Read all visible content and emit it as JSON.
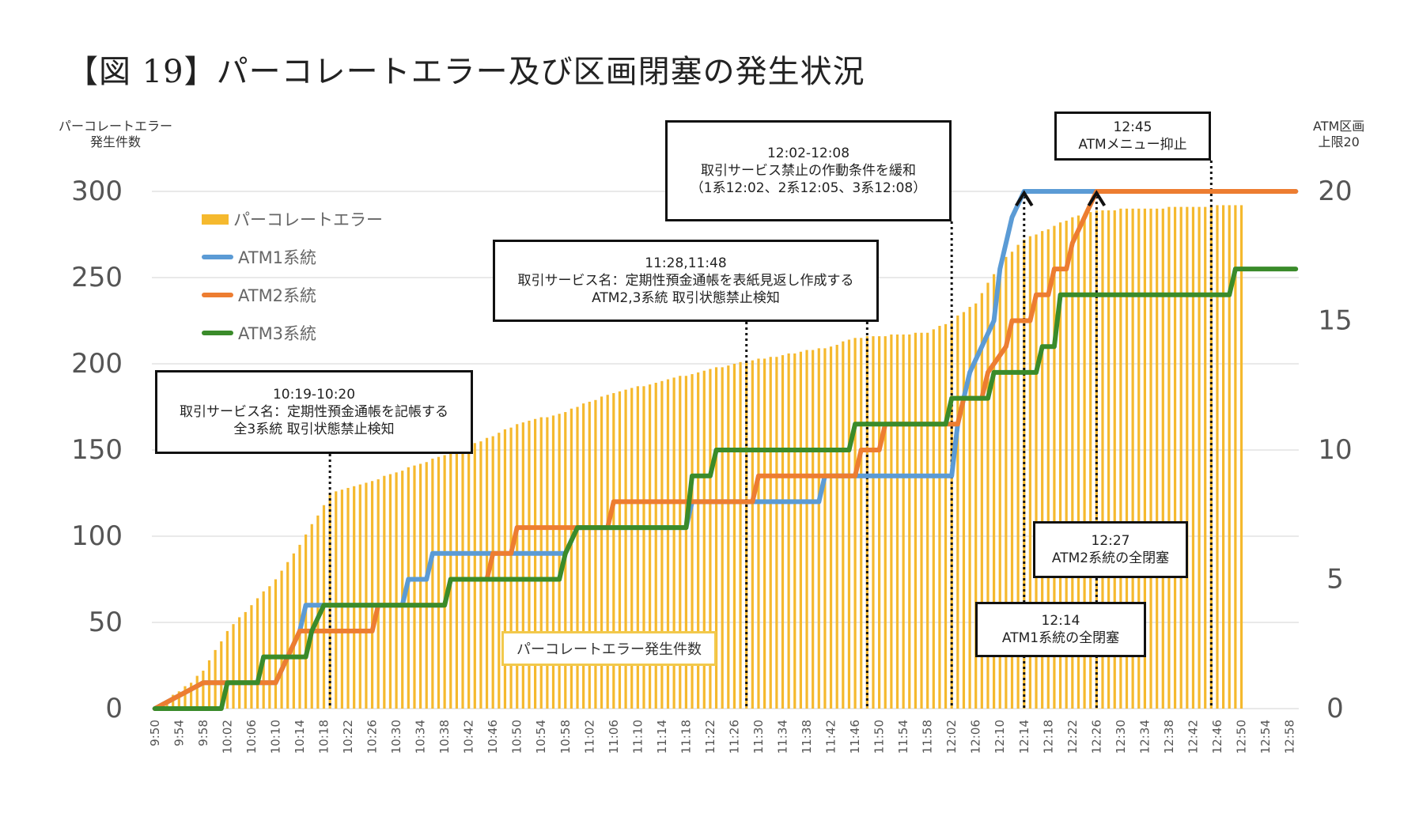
{
  "title": "【図 19】パーコレートエラー及び区画閉塞の発生状況",
  "chart_data": {
    "type": "bar+line",
    "y_left_title": [
      "パーコレートエラー",
      "発生件数"
    ],
    "y_right_title": [
      "ATM区画",
      "上限20"
    ],
    "y_left_ticks": [
      "300",
      "250",
      "200",
      "150",
      "100",
      "50",
      "0"
    ],
    "y_right_ticks": [
      "20",
      "15",
      "10",
      "5",
      "0"
    ],
    "ylim_left": [
      0,
      300
    ],
    "ylim_right": [
      0,
      20
    ],
    "x_start": "9:50",
    "x_end": "12:59",
    "x_tick_labels": [
      "9:50",
      "9:54",
      "9:58",
      "10:02",
      "10:06",
      "10:10",
      "10:14",
      "10:18",
      "10:22",
      "10:26",
      "10:30",
      "10:34",
      "10:38",
      "10:42",
      "10:46",
      "10:50",
      "10:54",
      "10:58",
      "11:02",
      "11:06",
      "11:10",
      "11:14",
      "11:18",
      "11:22",
      "11:26",
      "11:30",
      "11:34",
      "11:38",
      "11:42",
      "11:46",
      "11:50",
      "11:54",
      "11:58",
      "12:02",
      "12:06",
      "12:10",
      "12:14",
      "12:18",
      "12:22",
      "12:26",
      "12:30",
      "12:34",
      "12:38",
      "12:42",
      "12:46",
      "12:50",
      "12:54",
      "12:58"
    ],
    "bar_series": {
      "name": "パーコレートエラー",
      "color": "#f5b92e",
      "cumulative_points": [
        [
          "9:50",
          0
        ],
        [
          "9:52",
          5
        ],
        [
          "9:56",
          15
        ],
        [
          "9:58",
          22
        ],
        [
          "10:02",
          45
        ],
        [
          "10:06",
          60
        ],
        [
          "10:10",
          75
        ],
        [
          "10:14",
          95
        ],
        [
          "10:18",
          118
        ],
        [
          "10:19",
          125
        ],
        [
          "10:26",
          132
        ],
        [
          "10:34",
          142
        ],
        [
          "10:42",
          152
        ],
        [
          "10:46",
          158
        ],
        [
          "10:50",
          165
        ],
        [
          "10:58",
          172
        ],
        [
          "11:02",
          178
        ],
        [
          "11:06",
          183
        ],
        [
          "11:14",
          190
        ],
        [
          "11:26",
          200
        ],
        [
          "11:34",
          205
        ],
        [
          "11:42",
          210
        ],
        [
          "11:46",
          215
        ],
        [
          "11:58",
          218
        ],
        [
          "12:02",
          225
        ],
        [
          "12:06",
          235
        ],
        [
          "12:10",
          258
        ],
        [
          "12:14",
          272
        ],
        [
          "12:18",
          278
        ],
        [
          "12:22",
          285
        ],
        [
          "12:26",
          289
        ],
        [
          "12:50",
          292
        ]
      ],
      "last_bar": "12:50"
    },
    "line_series": [
      {
        "name": "ATM1系統",
        "color": "#5b9bd5",
        "steps": [
          [
            "9:50",
            0
          ],
          [
            "9:58",
            1
          ],
          [
            "10:01",
            1
          ],
          [
            "10:10",
            1
          ],
          [
            "10:12",
            2
          ],
          [
            "10:14",
            3
          ],
          [
            "10:15",
            4
          ],
          [
            "10:18",
            4
          ],
          [
            "10:20",
            4
          ],
          [
            "10:31",
            4
          ],
          [
            "10:32",
            5
          ],
          [
            "10:35",
            5
          ],
          [
            "10:36",
            6
          ],
          [
            "10:58",
            6
          ],
          [
            "11:00",
            7
          ],
          [
            "11:18",
            7
          ],
          [
            "11:19",
            8
          ],
          [
            "11:29",
            8
          ],
          [
            "11:40",
            8
          ],
          [
            "11:41",
            9
          ],
          [
            "12:02",
            9
          ],
          [
            "12:03",
            11
          ],
          [
            "12:04",
            12
          ],
          [
            "12:05",
            13
          ],
          [
            "12:07",
            14
          ],
          [
            "12:09",
            15
          ],
          [
            "12:10",
            17
          ],
          [
            "12:12",
            19
          ],
          [
            "12:14",
            20
          ],
          [
            "12:59",
            20
          ]
        ]
      },
      {
        "name": "ATM2系統",
        "color": "#ed7d31",
        "steps": [
          [
            "9:50",
            0
          ],
          [
            "9:58",
            1
          ],
          [
            "10:01",
            1
          ],
          [
            "10:10",
            1
          ],
          [
            "10:12",
            2
          ],
          [
            "10:14",
            3
          ],
          [
            "10:26",
            3
          ],
          [
            "10:27",
            4
          ],
          [
            "10:38",
            4
          ],
          [
            "10:39",
            5
          ],
          [
            "10:45",
            5
          ],
          [
            "10:46",
            6
          ],
          [
            "10:49",
            6
          ],
          [
            "10:50",
            7
          ],
          [
            "11:05",
            7
          ],
          [
            "11:06",
            8
          ],
          [
            "11:29",
            8
          ],
          [
            "11:30",
            9
          ],
          [
            "11:46",
            9
          ],
          [
            "11:47",
            10
          ],
          [
            "11:50",
            10
          ],
          [
            "11:51",
            11
          ],
          [
            "12:03",
            11
          ],
          [
            "12:04",
            12
          ],
          [
            "12:07",
            12
          ],
          [
            "12:08",
            13
          ],
          [
            "12:11",
            14
          ],
          [
            "12:12",
            15
          ],
          [
            "12:15",
            15
          ],
          [
            "12:16",
            16
          ],
          [
            "12:18",
            16
          ],
          [
            "12:19",
            17
          ],
          [
            "12:21",
            17
          ],
          [
            "12:22",
            18
          ],
          [
            "12:24",
            19
          ],
          [
            "12:26",
            20
          ],
          [
            "12:59",
            20
          ]
        ]
      },
      {
        "name": "ATM3系統",
        "color": "#3a8b2a",
        "steps": [
          [
            "9:50",
            0
          ],
          [
            "10:01",
            0
          ],
          [
            "10:02",
            1
          ],
          [
            "10:07",
            1
          ],
          [
            "10:08",
            2
          ],
          [
            "10:15",
            2
          ],
          [
            "10:16",
            3
          ],
          [
            "10:18",
            4
          ],
          [
            "10:38",
            4
          ],
          [
            "10:39",
            5
          ],
          [
            "10:57",
            5
          ],
          [
            "10:58",
            6
          ],
          [
            "11:00",
            7
          ],
          [
            "11:18",
            7
          ],
          [
            "11:19",
            9
          ],
          [
            "11:22",
            9
          ],
          [
            "11:23",
            10
          ],
          [
            "11:45",
            10
          ],
          [
            "11:46",
            11
          ],
          [
            "12:01",
            11
          ],
          [
            "12:02",
            12
          ],
          [
            "12:08",
            12
          ],
          [
            "12:09",
            13
          ],
          [
            "12:16",
            13
          ],
          [
            "12:17",
            14
          ],
          [
            "12:19",
            14
          ],
          [
            "12:20",
            16
          ],
          [
            "12:48",
            16
          ],
          [
            "12:49",
            17
          ],
          [
            "12:59",
            17
          ]
        ]
      }
    ],
    "annotations": [
      {
        "time": "10:19",
        "lines": [
          "10:19-10:20",
          "取引サービス名：定期性預金通帳を記帳する",
          "全3系統 取引状態禁止検知"
        ]
      },
      {
        "time": "11:28",
        "lines": [
          "11:28,11:48",
          "取引サービス名：定期性預金通帳を表紙見返し作成する",
          "ATM2,3系統 取引状態禁止検知"
        ]
      },
      {
        "time": "12:02",
        "lines": [
          "12:02-12:08",
          "取引サービス禁止の作動条件を緩和",
          "（1系12:02、2系12:05、3系12:08）"
        ]
      },
      {
        "time": "12:45",
        "lines": [
          "12:45",
          "ATMメニュー抑止"
        ]
      },
      {
        "time": "12:27",
        "lines": [
          "12:27",
          "ATM2系統の全閉塞"
        ]
      },
      {
        "time": "12:14",
        "lines": [
          "12:14",
          "ATM1系統の全閉塞"
        ]
      }
    ],
    "center_label": "パーコレートエラー発生件数",
    "legend_placement": "top-left",
    "grid": true
  }
}
